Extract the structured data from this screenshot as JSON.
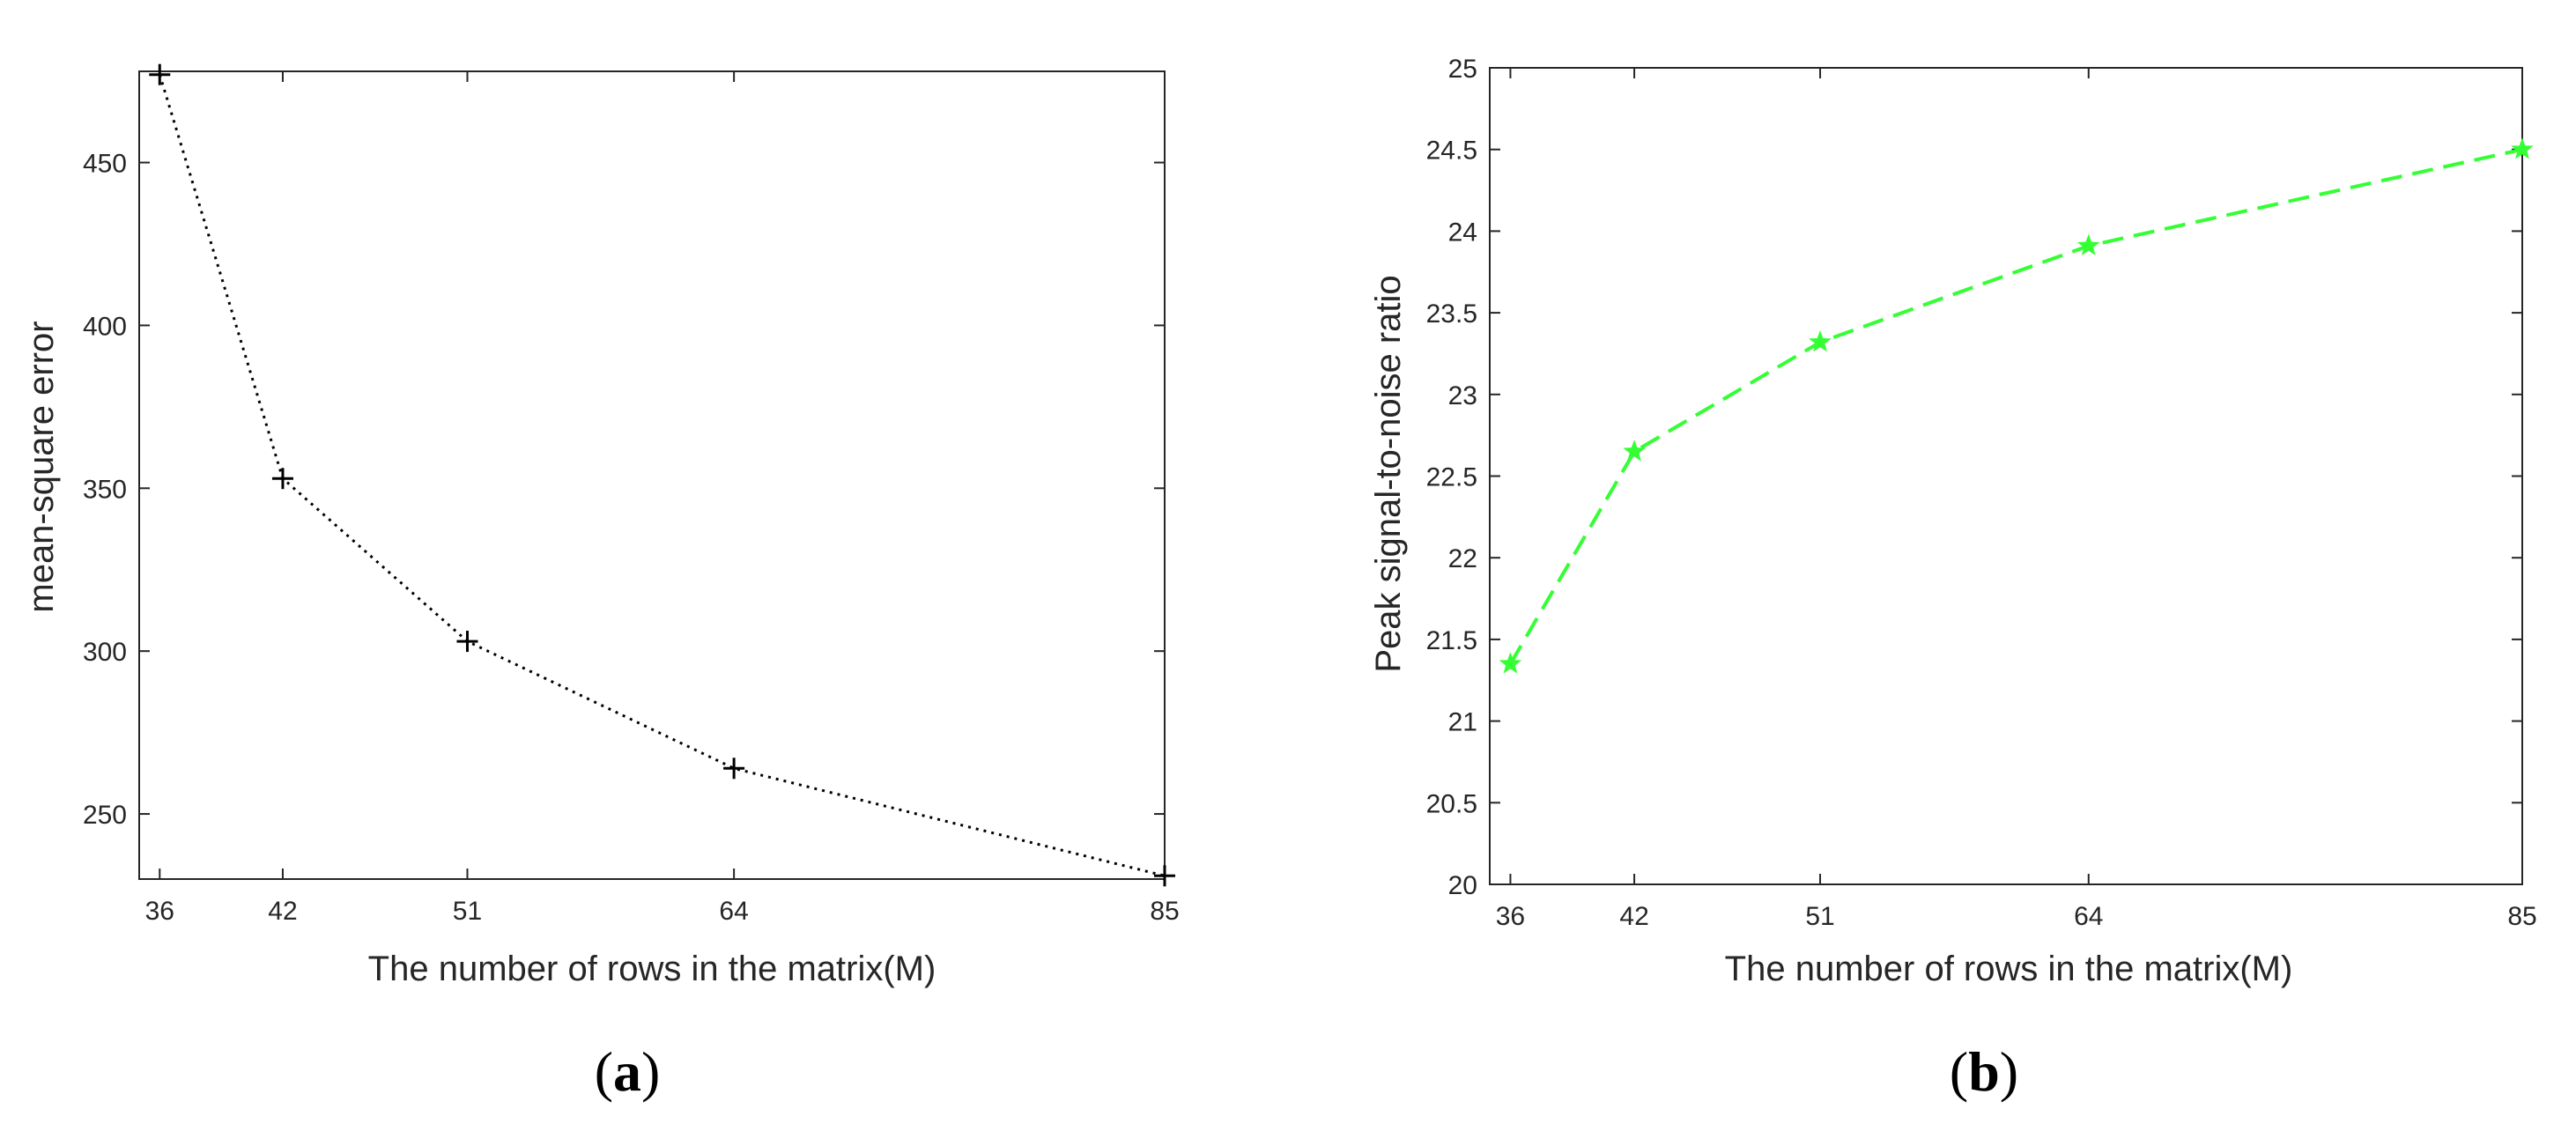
{
  "chart_data": [
    {
      "type": "line",
      "panel_label_open": "(",
      "panel_label_letter": "a",
      "panel_label_close": ")",
      "xlabel": "The number of rows in the matrix(M)",
      "ylabel": "mean-square error",
      "x": [
        36,
        42,
        51,
        64,
        85
      ],
      "xticks": [
        36,
        42,
        51,
        64,
        85
      ],
      "xlim": [
        35,
        85
      ],
      "ylim": [
        230,
        478
      ],
      "yticks": [
        250,
        300,
        350,
        400,
        450
      ],
      "series": [
        {
          "values": [
            477,
            353,
            303,
            264,
            231
          ],
          "color": "#000000",
          "line_style": "dotted",
          "marker": "plus"
        }
      ],
      "grid": false
    },
    {
      "type": "line",
      "panel_label_open": "(",
      "panel_label_letter": "b",
      "panel_label_close": ")",
      "xlabel": "The number of rows in the matrix(M)",
      "ylabel": "Peak signal-to-noise ratio",
      "x": [
        36,
        42,
        51,
        64,
        85
      ],
      "xticks": [
        36,
        42,
        51,
        64,
        85
      ],
      "xlim": [
        35,
        85
      ],
      "ylim": [
        20,
        25
      ],
      "yticks": [
        20,
        20.5,
        21,
        21.5,
        22,
        22.5,
        23,
        23.5,
        24,
        24.5,
        25
      ],
      "series": [
        {
          "values": [
            21.35,
            22.65,
            23.32,
            23.91,
            24.5
          ],
          "color": "#33ff33",
          "line_style": "dashed",
          "marker": "star"
        }
      ],
      "grid": false
    }
  ]
}
